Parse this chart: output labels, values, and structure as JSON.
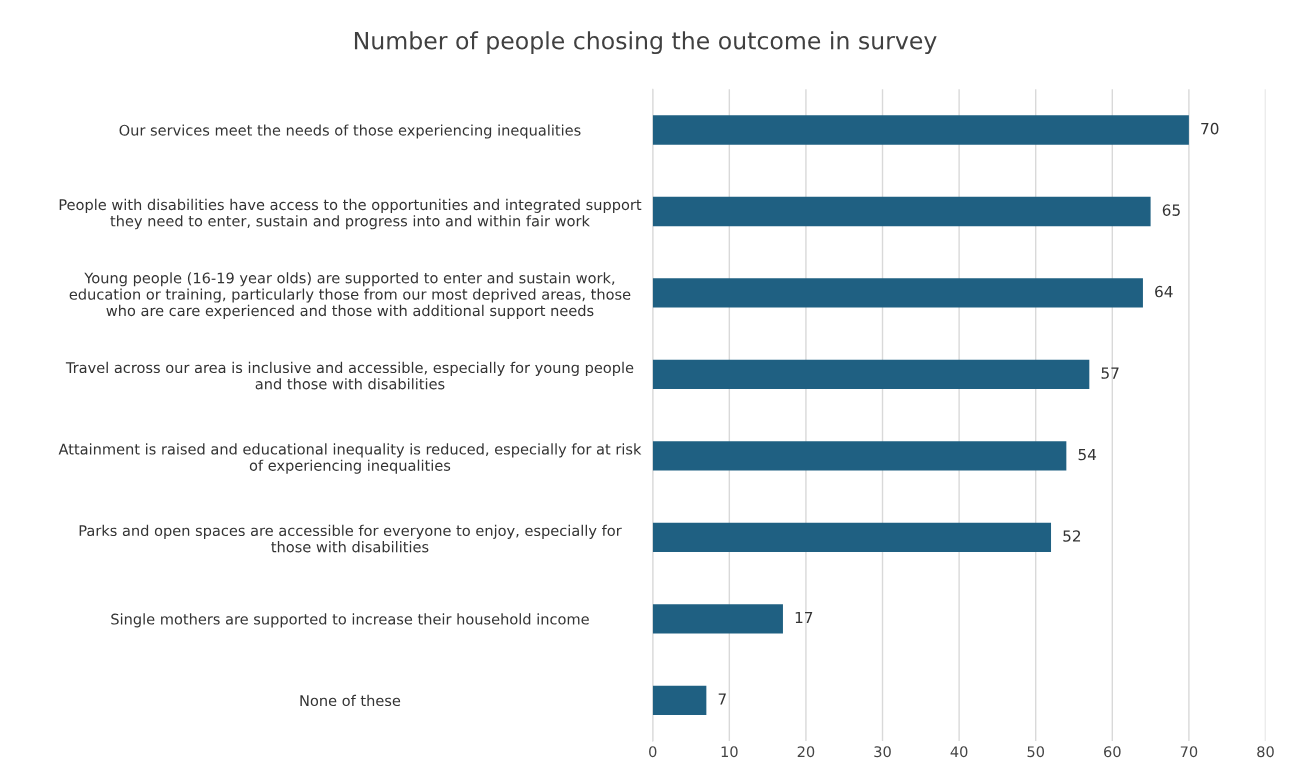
{
  "chart_data": {
    "type": "bar",
    "orientation": "horizontal",
    "title": "Number of people chosing the outcome in survey",
    "categories": [
      "Our services meet the needs of those experiencing inequalities",
      "People with disabilities have access to the opportunities and integrated support\nthey need to enter, sustain and progress into and within fair work",
      "Young people (16-19 year olds) are supported to enter and sustain work,\neducation or training, particularly those from our most deprived areas, those\nwho are care experienced and those with additional support needs",
      "Travel across our area is inclusive and accessible, especially for young people\nand those with disabilities",
      "Attainment is raised and educational inequality is reduced, especially for at risk\nof experiencing inequalities",
      "Parks and open spaces are accessible for everyone to enjoy, especially for\nthose with disabilities",
      "Single mothers are supported to increase their household income",
      "None of these"
    ],
    "values": [
      70,
      65,
      64,
      57,
      54,
      52,
      17,
      7
    ],
    "color": "#1f6082",
    "xlim": [
      0,
      80
    ],
    "xticks": [
      0,
      10,
      20,
      30,
      40,
      50,
      60,
      70,
      80
    ],
    "grid": "x",
    "data_labels": true
  }
}
